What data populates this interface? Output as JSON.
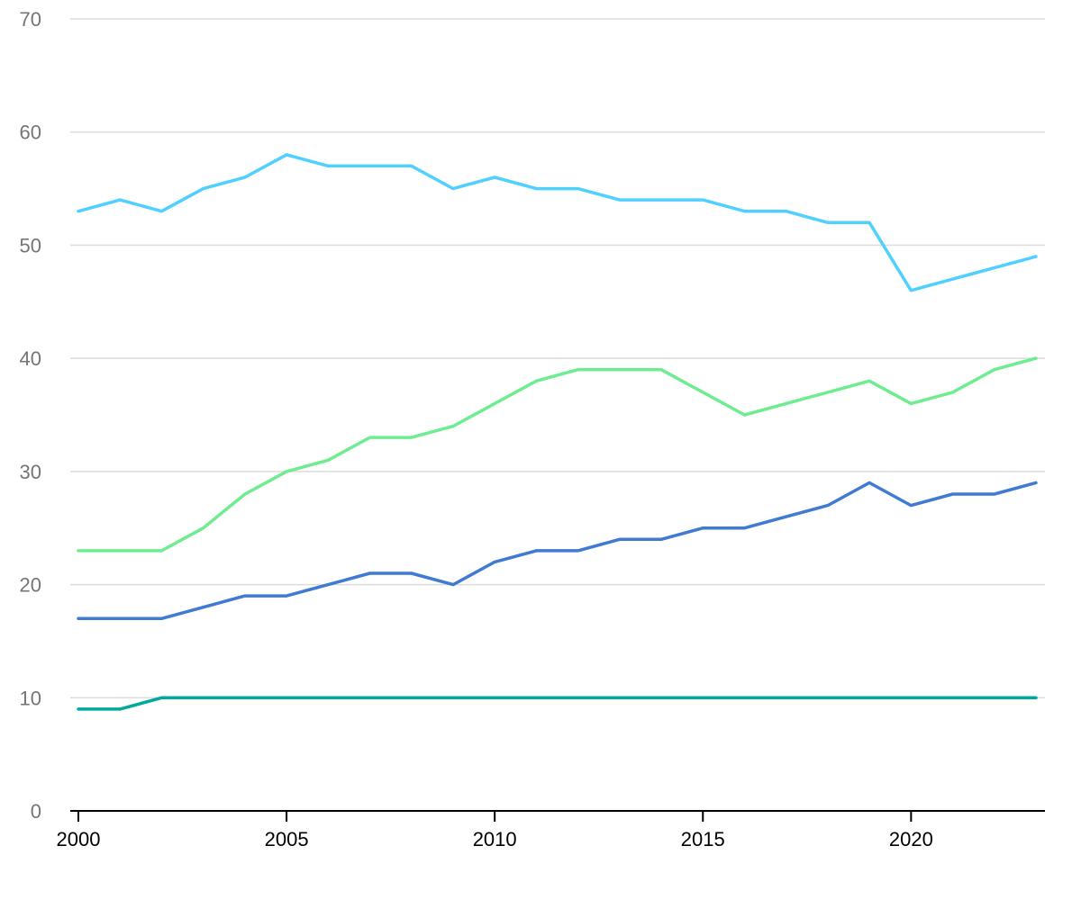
{
  "chart_data": {
    "type": "line",
    "title": "",
    "xlabel": "",
    "ylabel": "",
    "x": [
      2000,
      2001,
      2002,
      2003,
      2004,
      2005,
      2006,
      2007,
      2008,
      2009,
      2010,
      2011,
      2012,
      2013,
      2014,
      2015,
      2016,
      2017,
      2018,
      2019,
      2020,
      2021,
      2022,
      2023
    ],
    "xlim": [
      2000,
      2023
    ],
    "ylim": [
      0,
      70
    ],
    "x_ticks": [
      "2000",
      "2005",
      "2010",
      "2015",
      "2020"
    ],
    "y_ticks": [
      "0",
      "10",
      "20",
      "30",
      "40",
      "50",
      "60",
      "70"
    ],
    "grid": "horizontal",
    "legend": "none",
    "series": [
      {
        "color": "#4fd0ff",
        "values": [
          53,
          54,
          53,
          55,
          56,
          58,
          57,
          57,
          57,
          55,
          56,
          55,
          55,
          54,
          54,
          54,
          53,
          53,
          52,
          52,
          46,
          47,
          48,
          49
        ]
      },
      {
        "color": "#6ded90",
        "values": [
          23,
          23,
          23,
          25,
          28,
          30,
          31,
          33,
          33,
          34,
          36,
          38,
          39,
          39,
          39,
          37,
          35,
          36,
          37,
          38,
          36,
          37,
          39,
          40
        ]
      },
      {
        "color": "#3f7ad3",
        "values": [
          17,
          17,
          17,
          18,
          19,
          19,
          20,
          21,
          21,
          20,
          22,
          23,
          23,
          24,
          24,
          25,
          25,
          26,
          27,
          29,
          27,
          28,
          28,
          29
        ]
      },
      {
        "color": "#00a99d",
        "values": [
          9,
          9,
          10,
          10,
          10,
          10,
          10,
          10,
          10,
          10,
          10,
          10,
          10,
          10,
          10,
          10,
          10,
          10,
          10,
          10,
          10,
          10,
          10,
          10
        ]
      }
    ]
  }
}
